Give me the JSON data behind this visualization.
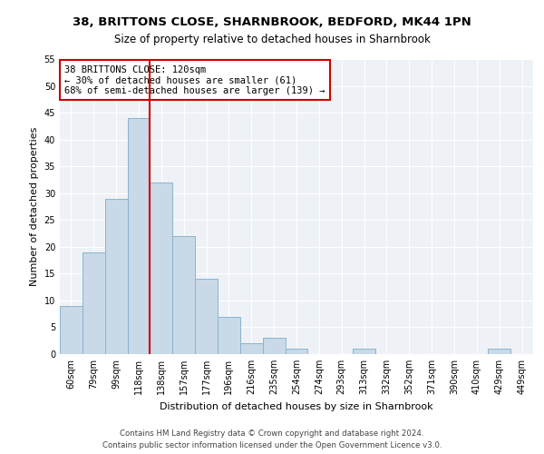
{
  "title1": "38, BRITTONS CLOSE, SHARNBROOK, BEDFORD, MK44 1PN",
  "title2": "Size of property relative to detached houses in Sharnbrook",
  "xlabel": "Distribution of detached houses by size in Sharnbrook",
  "ylabel": "Number of detached properties",
  "categories": [
    "60sqm",
    "79sqm",
    "99sqm",
    "118sqm",
    "138sqm",
    "157sqm",
    "177sqm",
    "196sqm",
    "216sqm",
    "235sqm",
    "254sqm",
    "274sqm",
    "293sqm",
    "313sqm",
    "332sqm",
    "352sqm",
    "371sqm",
    "390sqm",
    "410sqm",
    "429sqm",
    "449sqm"
  ],
  "values": [
    9,
    19,
    29,
    44,
    32,
    22,
    14,
    7,
    2,
    3,
    1,
    0,
    0,
    1,
    0,
    0,
    0,
    0,
    0,
    1,
    0
  ],
  "bar_color": "#c9d9e8",
  "bar_edge_color": "#8ab4cc",
  "bar_width": 1.0,
  "vline_x": 3.5,
  "vline_color": "#cc0000",
  "annotation_line1": "38 BRITTONS CLOSE: 120sqm",
  "annotation_line2": "← 30% of detached houses are smaller (61)",
  "annotation_line3": "68% of semi-detached houses are larger (139) →",
  "annotation_box_color": "#cc0000",
  "annotation_box_facecolor": "white",
  "ylim": [
    0,
    55
  ],
  "yticks": [
    0,
    5,
    10,
    15,
    20,
    25,
    30,
    35,
    40,
    45,
    50,
    55
  ],
  "footer1": "Contains HM Land Registry data © Crown copyright and database right 2024.",
  "footer2": "Contains public sector information licensed under the Open Government Licence v3.0.",
  "background_color": "#eef2f7",
  "grid_color": "#ffffff",
  "title1_fontsize": 9.5,
  "title2_fontsize": 8.5,
  "xlabel_fontsize": 8,
  "ylabel_fontsize": 8,
  "tick_fontsize": 7,
  "footer_fontsize": 6.2,
  "annot_fontsize": 7.5
}
